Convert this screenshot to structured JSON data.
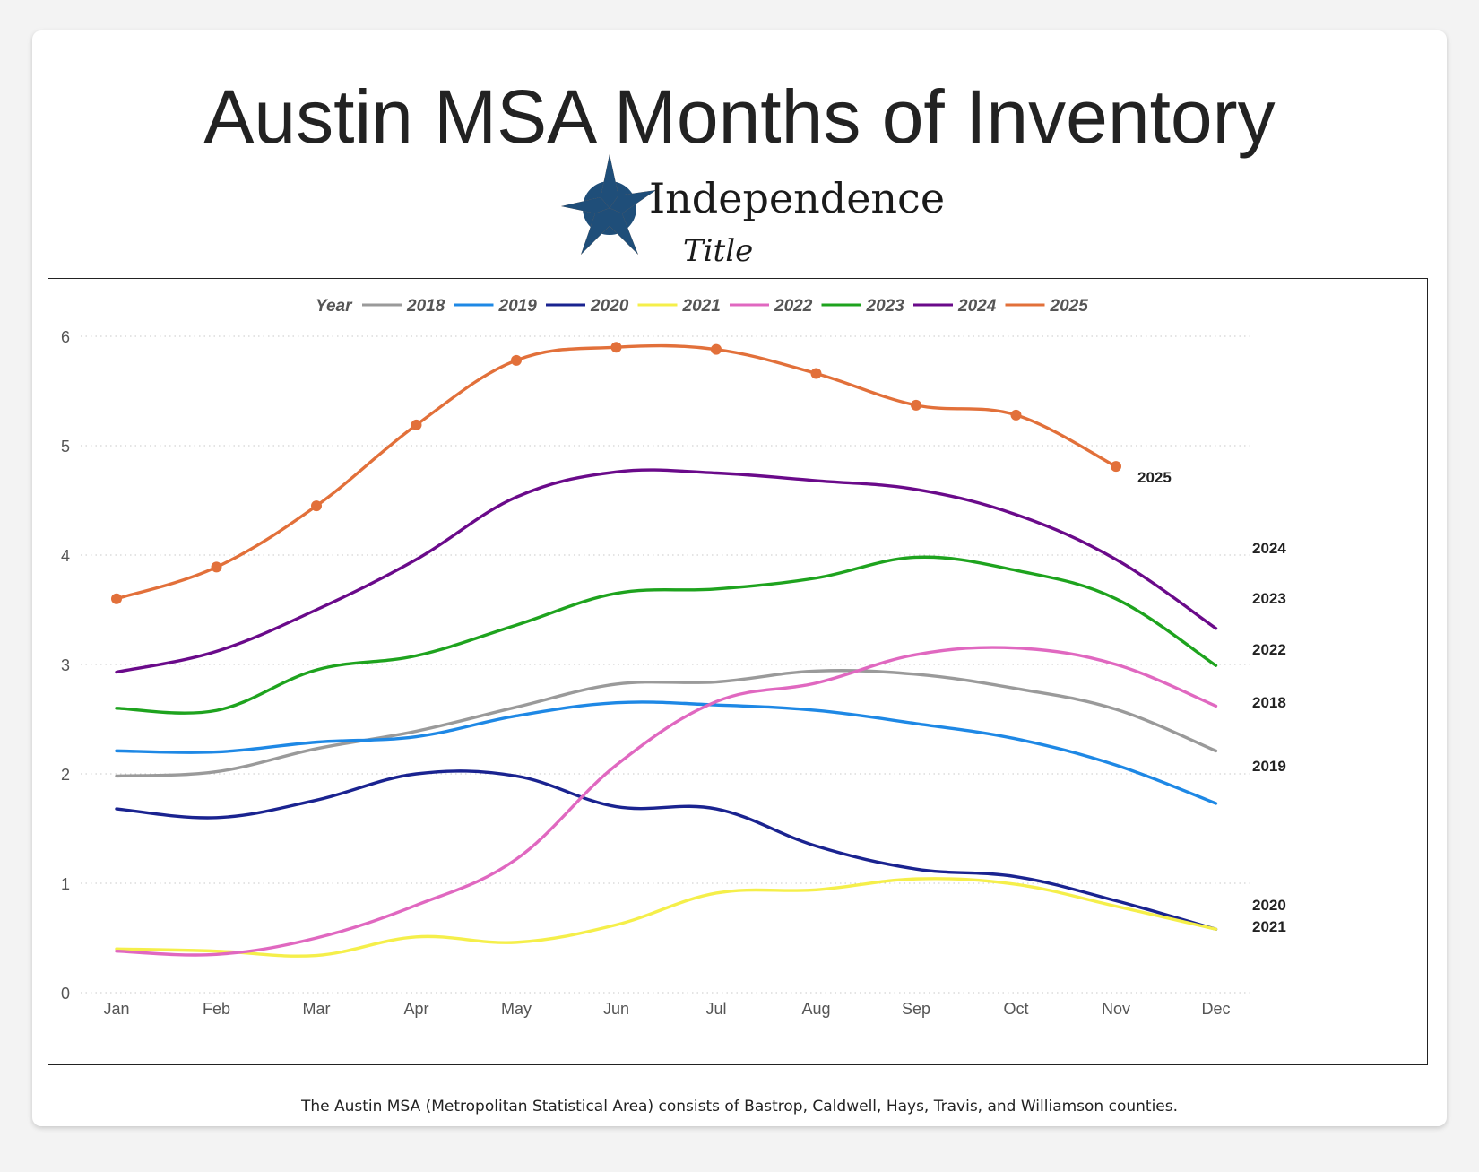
{
  "page": {
    "title": "Austin MSA Months of Inventory",
    "footnote": "The Austin MSA (Metropolitan Statistical Area) consists of Bastrop, Caldwell, Hays, Travis, and Williamson counties."
  },
  "logo": {
    "name": "Independence",
    "sub": "Title",
    "colors": {
      "star_blue": "#1f4e79",
      "star_orange": "#e07b2a"
    }
  },
  "chart_data": {
    "type": "line",
    "title": "",
    "xlabel": "",
    "ylabel": "",
    "legend_title": "Year",
    "legend_position": "top",
    "categories": [
      "Jan",
      "Feb",
      "Mar",
      "Apr",
      "May",
      "Jun",
      "Jul",
      "Aug",
      "Sep",
      "Oct",
      "Nov",
      "Dec"
    ],
    "ylim": [
      0,
      6
    ],
    "yticks": [
      0,
      1,
      2,
      3,
      4,
      5,
      6
    ],
    "grid": "horizontal-dotted",
    "series": [
      {
        "name": "2018",
        "color": "#9a9a9a",
        "values": [
          1.98,
          2.02,
          2.23,
          2.39,
          2.61,
          2.82,
          2.84,
          2.94,
          2.91,
          2.78,
          2.59,
          2.21
        ]
      },
      {
        "name": "2019",
        "color": "#1e88e5",
        "values": [
          2.21,
          2.2,
          2.29,
          2.34,
          2.53,
          2.65,
          2.63,
          2.58,
          2.46,
          2.32,
          2.08,
          1.73
        ]
      },
      {
        "name": "2020",
        "color": "#1a2390",
        "values": [
          1.68,
          1.6,
          1.76,
          2.0,
          1.98,
          1.7,
          1.68,
          1.34,
          1.13,
          1.06,
          0.84,
          0.58
        ]
      },
      {
        "name": "2021",
        "color": "#f5ef4a",
        "values": [
          0.4,
          0.38,
          0.34,
          0.51,
          0.46,
          0.62,
          0.91,
          0.94,
          1.04,
          0.99,
          0.79,
          0.58
        ]
      },
      {
        "name": "2022",
        "color": "#e068c0",
        "values": [
          0.38,
          0.35,
          0.5,
          0.8,
          1.22,
          2.08,
          2.66,
          2.83,
          3.09,
          3.15,
          3.0,
          2.62
        ]
      },
      {
        "name": "2023",
        "color": "#1ea31e",
        "values": [
          2.6,
          2.58,
          2.95,
          3.08,
          3.36,
          3.65,
          3.69,
          3.79,
          3.98,
          3.86,
          3.6,
          2.99
        ]
      },
      {
        "name": "2024",
        "color": "#6a0a8a",
        "values": [
          2.93,
          3.12,
          3.5,
          3.96,
          4.53,
          4.76,
          4.75,
          4.68,
          4.6,
          4.37,
          3.96,
          3.33
        ]
      },
      {
        "name": "2025",
        "color": "#e2703a",
        "values": [
          3.6,
          3.89,
          4.45,
          5.19,
          5.78,
          5.9,
          5.88,
          5.66,
          5.37,
          5.28,
          4.81,
          null
        ],
        "markers": true
      }
    ],
    "end_labels": [
      {
        "series": "2025",
        "text": "2025"
      },
      {
        "series": "2024",
        "text": "2024"
      },
      {
        "series": "2023",
        "text": "2023"
      },
      {
        "series": "2022",
        "text": "2022"
      },
      {
        "series": "2018",
        "text": "2018"
      },
      {
        "series": "2019",
        "text": "2019"
      },
      {
        "series": "2020",
        "text": "2020"
      },
      {
        "series": "2021",
        "text": "2021"
      }
    ]
  }
}
